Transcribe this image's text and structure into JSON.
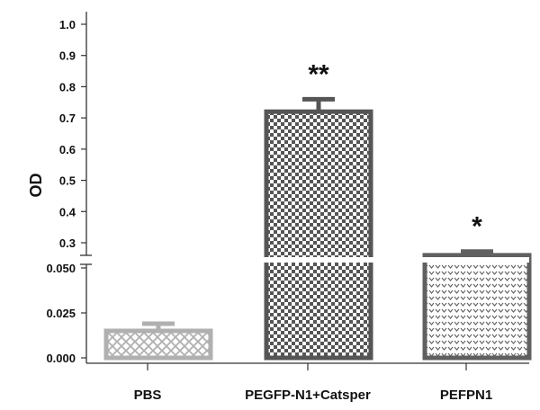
{
  "chart_data": {
    "type": "bar",
    "title": "",
    "xlabel": "",
    "ylabel": "OD",
    "categories": [
      "PBS",
      "PEGFP-N1+Catsper",
      "PEFPN1"
    ],
    "values": [
      0.015,
      0.72,
      0.26
    ],
    "errors": [
      0.004,
      0.04,
      0.012
    ],
    "significance": [
      "",
      "**",
      "*"
    ],
    "broken_axis": {
      "lower_range": [
        0.0,
        0.05
      ],
      "upper_range": [
        0.25,
        1.0
      ],
      "lower_ticks": [
        "0.000",
        "0.025",
        "0.050"
      ],
      "upper_ticks": [
        "0.3",
        "0.4",
        "0.5",
        "0.6",
        "0.7",
        "0.8",
        "0.9",
        "1.0"
      ]
    },
    "bar_colors": [
      "#b0b0b0",
      "#555555",
      "#606060"
    ],
    "bar_patterns": [
      "crosshatch",
      "checkerboard",
      "dots"
    ],
    "grid": false
  }
}
